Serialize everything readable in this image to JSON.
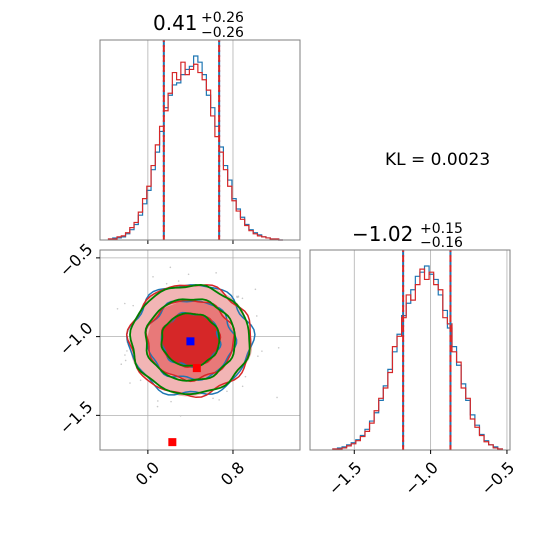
{
  "colors": {
    "blue": "#1f77b4",
    "red": "#d62728",
    "green": "#008000",
    "grid": "#b0b0b0",
    "marker_blue": "#0000ff",
    "marker_red": "#ff0000"
  },
  "chart_data": [
    {
      "panel": "marginal-x",
      "type": "histogram",
      "title": {
        "main": "0.41",
        "sup": "+0.26",
        "sub": "−0.26"
      },
      "xlim": [
        -0.45,
        1.43
      ],
      "grid": true,
      "quantile_lines": [
        0.15,
        0.67
      ],
      "series": [
        {
          "color": "#1f77b4",
          "bin_centers": [
            -0.35,
            -0.31,
            -0.27,
            -0.23,
            -0.19,
            -0.15,
            -0.11,
            -0.07,
            -0.03,
            0.01,
            0.05,
            0.09,
            0.13,
            0.17,
            0.21,
            0.25,
            0.29,
            0.33,
            0.37,
            0.41,
            0.45,
            0.49,
            0.53,
            0.57,
            0.61,
            0.65,
            0.69,
            0.73,
            0.77,
            0.81,
            0.85,
            0.89,
            0.93,
            0.97,
            1.01,
            1.05,
            1.09,
            1.13,
            1.17,
            1.21,
            1.25
          ],
          "values": [
            1,
            2,
            2,
            3,
            6,
            10,
            15,
            24,
            35,
            48,
            68,
            85,
            105,
            128,
            140,
            150,
            152,
            160,
            165,
            168,
            178,
            172,
            160,
            140,
            128,
            110,
            90,
            72,
            58,
            40,
            30,
            22,
            15,
            10,
            7,
            5,
            3,
            2,
            1,
            1,
            0
          ]
        },
        {
          "color": "#d62728",
          "bin_centers": [
            -0.35,
            -0.31,
            -0.27,
            -0.23,
            -0.19,
            -0.15,
            -0.11,
            -0.07,
            -0.03,
            0.01,
            0.05,
            0.09,
            0.13,
            0.17,
            0.21,
            0.25,
            0.29,
            0.33,
            0.37,
            0.41,
            0.45,
            0.49,
            0.53,
            0.57,
            0.61,
            0.65,
            0.69,
            0.73,
            0.77,
            0.81,
            0.85,
            0.89,
            0.93,
            0.97,
            1.01,
            1.05,
            1.09,
            1.13,
            1.17,
            1.21,
            1.25
          ],
          "values": [
            1,
            1,
            3,
            4,
            7,
            12,
            17,
            27,
            40,
            52,
            72,
            92,
            110,
            125,
            142,
            162,
            155,
            172,
            160,
            165,
            170,
            162,
            155,
            145,
            120,
            100,
            85,
            68,
            52,
            38,
            28,
            20,
            14,
            9,
            6,
            4,
            3,
            2,
            1,
            1,
            0
          ]
        }
      ]
    },
    {
      "panel": "marginal-y",
      "type": "histogram",
      "title": {
        "main": "−1.02",
        "sup": "+0.15",
        "sub": "−0.16"
      },
      "xlim": [
        -1.79,
        -0.48
      ],
      "xticks": [
        "−1.5",
        "−1.0",
        "−0.5"
      ],
      "grid": true,
      "quantile_lines": [
        -1.18,
        -0.87
      ],
      "series": [
        {
          "color": "#1f77b4",
          "bin_centers": [
            -1.625,
            -1.595,
            -1.565,
            -1.535,
            -1.505,
            -1.475,
            -1.445,
            -1.415,
            -1.385,
            -1.355,
            -1.325,
            -1.295,
            -1.265,
            -1.235,
            -1.205,
            -1.175,
            -1.145,
            -1.115,
            -1.085,
            -1.055,
            -1.025,
            -0.995,
            -0.965,
            -0.935,
            -0.905,
            -0.875,
            -0.845,
            -0.815,
            -0.785,
            -0.755,
            -0.725,
            -0.695,
            -0.665,
            -0.635,
            -0.605,
            -0.575,
            -0.545
          ],
          "values": [
            1,
            2,
            3,
            5,
            7,
            10,
            14,
            20,
            28,
            36,
            48,
            62,
            78,
            95,
            112,
            130,
            142,
            155,
            168,
            172,
            178,
            170,
            165,
            150,
            135,
            118,
            100,
            82,
            64,
            48,
            34,
            24,
            15,
            9,
            5,
            3,
            1
          ]
        },
        {
          "color": "#d62728",
          "bin_centers": [
            -1.625,
            -1.595,
            -1.565,
            -1.535,
            -1.505,
            -1.475,
            -1.445,
            -1.415,
            -1.385,
            -1.355,
            -1.325,
            -1.295,
            -1.265,
            -1.235,
            -1.205,
            -1.175,
            -1.145,
            -1.115,
            -1.085,
            -1.055,
            -1.025,
            -0.995,
            -0.965,
            -0.935,
            -0.905,
            -0.875,
            -0.845,
            -0.815,
            -0.785,
            -0.755,
            -0.725,
            -0.695,
            -0.665,
            -0.635,
            -0.605,
            -0.575,
            -0.545
          ],
          "values": [
            1,
            1,
            2,
            4,
            6,
            9,
            13,
            18,
            26,
            38,
            50,
            60,
            75,
            100,
            110,
            128,
            150,
            145,
            160,
            175,
            165,
            172,
            160,
            155,
            128,
            122,
            95,
            85,
            60,
            50,
            30,
            22,
            14,
            8,
            5,
            2,
            1
          ]
        }
      ]
    },
    {
      "panel": "joint",
      "type": "scatter",
      "xlim": [
        -0.45,
        1.43
      ],
      "ylim": [
        -1.72,
        -0.45
      ],
      "xticks": [
        "0.0",
        "0.8"
      ],
      "yticks": [
        "−0.5",
        "−1.0",
        "−1.5"
      ],
      "grid": true,
      "center": {
        "x": 0.4,
        "y": -1.02
      },
      "spread": {
        "x": 0.26,
        "y": 0.16
      },
      "contours": [
        {
          "color": "#1f77b4",
          "sigma_levels": [
            1.0,
            1.5,
            2.1
          ]
        },
        {
          "color": "#d62728",
          "sigma_levels": [
            1.0,
            1.5,
            2.1
          ],
          "filled": true
        },
        {
          "color": "#008000",
          "sigma_levels": [
            1.0,
            1.55,
            2.05
          ]
        }
      ],
      "markers": [
        {
          "color": "#0000ff",
          "x": 0.4,
          "y": -1.03
        },
        {
          "color": "#ff0000",
          "x": 0.46,
          "y": -1.2
        },
        {
          "color": "#ff0000",
          "x": 0.23,
          "y": -1.67
        }
      ]
    }
  ],
  "annotation": {
    "kl_text": "KL = 0.0023"
  }
}
